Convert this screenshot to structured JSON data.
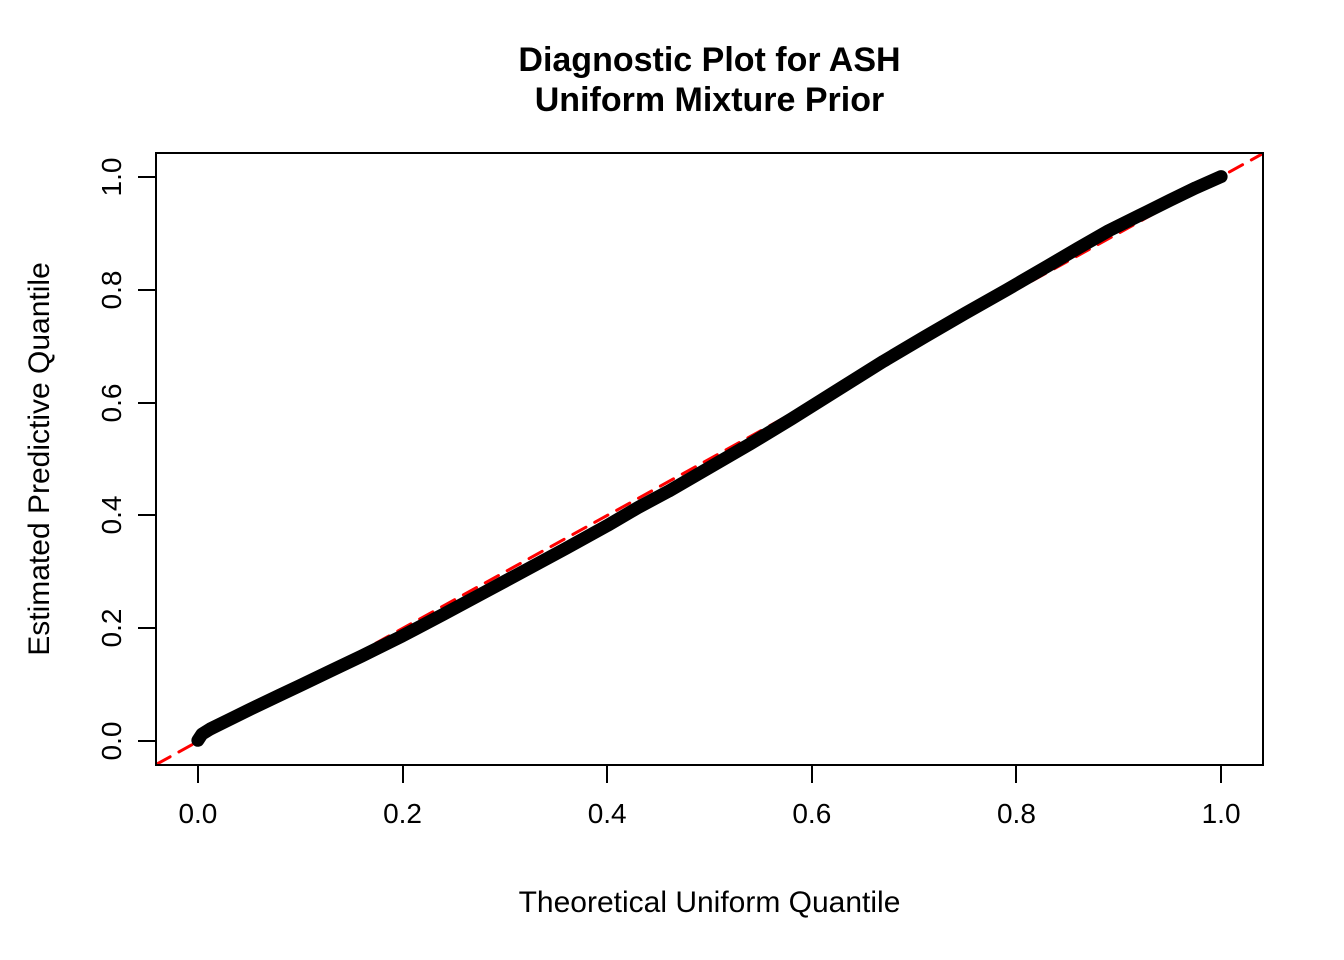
{
  "page": {
    "background_color": "#ffffff",
    "foreground_color": "#000000",
    "accent_color": "#ff0000"
  },
  "chart_data": {
    "type": "line",
    "title_lines": [
      "Diagnostic Plot for ASH",
      "Uniform Mixture Prior"
    ],
    "xlabel": "Theoretical Uniform Quantile",
    "ylabel": "Estimated Predictive Quantile",
    "xlim": [
      0,
      1
    ],
    "ylim": [
      0,
      1
    ],
    "axis_range_extension": 0.04,
    "grid": false,
    "legend": "none",
    "x_ticks": {
      "values": [
        0,
        0.2,
        0.4,
        0.6,
        0.8,
        1.0
      ],
      "labels": [
        "0.0",
        "0.2",
        "0.4",
        "0.6",
        "0.8",
        "1.0"
      ]
    },
    "y_ticks": {
      "values": [
        0,
        0.2,
        0.4,
        0.6,
        0.8,
        1.0
      ],
      "labels": [
        "0.0",
        "0.2",
        "0.4",
        "0.6",
        "0.8",
        "1.0"
      ]
    },
    "series": [
      {
        "name": "estimated-predictive-quantile-curve",
        "style": "solid",
        "color": "#000000",
        "line_width": 13,
        "x": [
          0.0,
          0.004,
          0.012,
          0.03,
          0.05,
          0.08,
          0.1,
          0.13,
          0.16,
          0.2,
          0.24,
          0.28,
          0.32,
          0.36,
          0.4,
          0.43,
          0.46,
          0.5,
          0.54,
          0.58,
          0.61,
          0.64,
          0.67,
          0.71,
          0.75,
          0.79,
          0.83,
          0.86,
          0.89,
          0.92,
          0.95,
          0.975,
          1.0
        ],
        "y": [
          0.002,
          0.013,
          0.022,
          0.038,
          0.056,
          0.082,
          0.099,
          0.125,
          0.151,
          0.187,
          0.225,
          0.264,
          0.303,
          0.342,
          0.382,
          0.414,
          0.443,
          0.485,
          0.527,
          0.571,
          0.605,
          0.639,
          0.673,
          0.716,
          0.758,
          0.799,
          0.841,
          0.873,
          0.904,
          0.931,
          0.958,
          0.98,
          1.0
        ]
      },
      {
        "name": "diagonal-reference-line",
        "style": "dashed",
        "color": "#ff0000",
        "line_width": 3,
        "dash": [
          15,
          10
        ],
        "x": [
          -0.04,
          1.04
        ],
        "y": [
          -0.04,
          1.04
        ]
      }
    ]
  }
}
